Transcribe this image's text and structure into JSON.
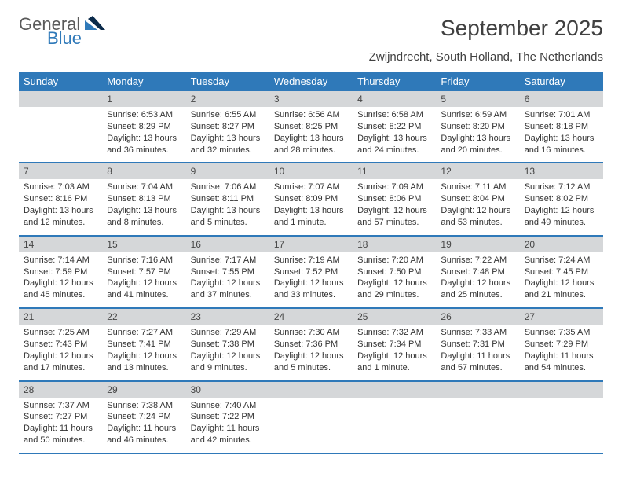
{
  "brand": {
    "word1": "General",
    "word2": "Blue"
  },
  "header": {
    "title": "September 2025",
    "subtitle": "Zwijndrecht, South Holland, The Netherlands"
  },
  "colors": {
    "accent": "#2f79b9",
    "daynum_bg": "#d5d7d9",
    "text": "#333333",
    "header_text": "#ffffff"
  },
  "weekday_labels": [
    "Sunday",
    "Monday",
    "Tuesday",
    "Wednesday",
    "Thursday",
    "Friday",
    "Saturday"
  ],
  "weeks": [
    {
      "nums": [
        "",
        "1",
        "2",
        "3",
        "4",
        "5",
        "6"
      ],
      "cells": [
        {},
        {
          "sunrise": "Sunrise: 6:53 AM",
          "sunset": "Sunset: 8:29 PM",
          "day1": "Daylight: 13 hours",
          "day2": "and 36 minutes."
        },
        {
          "sunrise": "Sunrise: 6:55 AM",
          "sunset": "Sunset: 8:27 PM",
          "day1": "Daylight: 13 hours",
          "day2": "and 32 minutes."
        },
        {
          "sunrise": "Sunrise: 6:56 AM",
          "sunset": "Sunset: 8:25 PM",
          "day1": "Daylight: 13 hours",
          "day2": "and 28 minutes."
        },
        {
          "sunrise": "Sunrise: 6:58 AM",
          "sunset": "Sunset: 8:22 PM",
          "day1": "Daylight: 13 hours",
          "day2": "and 24 minutes."
        },
        {
          "sunrise": "Sunrise: 6:59 AM",
          "sunset": "Sunset: 8:20 PM",
          "day1": "Daylight: 13 hours",
          "day2": "and 20 minutes."
        },
        {
          "sunrise": "Sunrise: 7:01 AM",
          "sunset": "Sunset: 8:18 PM",
          "day1": "Daylight: 13 hours",
          "day2": "and 16 minutes."
        }
      ]
    },
    {
      "nums": [
        "7",
        "8",
        "9",
        "10",
        "11",
        "12",
        "13"
      ],
      "cells": [
        {
          "sunrise": "Sunrise: 7:03 AM",
          "sunset": "Sunset: 8:16 PM",
          "day1": "Daylight: 13 hours",
          "day2": "and 12 minutes."
        },
        {
          "sunrise": "Sunrise: 7:04 AM",
          "sunset": "Sunset: 8:13 PM",
          "day1": "Daylight: 13 hours",
          "day2": "and 8 minutes."
        },
        {
          "sunrise": "Sunrise: 7:06 AM",
          "sunset": "Sunset: 8:11 PM",
          "day1": "Daylight: 13 hours",
          "day2": "and 5 minutes."
        },
        {
          "sunrise": "Sunrise: 7:07 AM",
          "sunset": "Sunset: 8:09 PM",
          "day1": "Daylight: 13 hours",
          "day2": "and 1 minute."
        },
        {
          "sunrise": "Sunrise: 7:09 AM",
          "sunset": "Sunset: 8:06 PM",
          "day1": "Daylight: 12 hours",
          "day2": "and 57 minutes."
        },
        {
          "sunrise": "Sunrise: 7:11 AM",
          "sunset": "Sunset: 8:04 PM",
          "day1": "Daylight: 12 hours",
          "day2": "and 53 minutes."
        },
        {
          "sunrise": "Sunrise: 7:12 AM",
          "sunset": "Sunset: 8:02 PM",
          "day1": "Daylight: 12 hours",
          "day2": "and 49 minutes."
        }
      ]
    },
    {
      "nums": [
        "14",
        "15",
        "16",
        "17",
        "18",
        "19",
        "20"
      ],
      "cells": [
        {
          "sunrise": "Sunrise: 7:14 AM",
          "sunset": "Sunset: 7:59 PM",
          "day1": "Daylight: 12 hours",
          "day2": "and 45 minutes."
        },
        {
          "sunrise": "Sunrise: 7:16 AM",
          "sunset": "Sunset: 7:57 PM",
          "day1": "Daylight: 12 hours",
          "day2": "and 41 minutes."
        },
        {
          "sunrise": "Sunrise: 7:17 AM",
          "sunset": "Sunset: 7:55 PM",
          "day1": "Daylight: 12 hours",
          "day2": "and 37 minutes."
        },
        {
          "sunrise": "Sunrise: 7:19 AM",
          "sunset": "Sunset: 7:52 PM",
          "day1": "Daylight: 12 hours",
          "day2": "and 33 minutes."
        },
        {
          "sunrise": "Sunrise: 7:20 AM",
          "sunset": "Sunset: 7:50 PM",
          "day1": "Daylight: 12 hours",
          "day2": "and 29 minutes."
        },
        {
          "sunrise": "Sunrise: 7:22 AM",
          "sunset": "Sunset: 7:48 PM",
          "day1": "Daylight: 12 hours",
          "day2": "and 25 minutes."
        },
        {
          "sunrise": "Sunrise: 7:24 AM",
          "sunset": "Sunset: 7:45 PM",
          "day1": "Daylight: 12 hours",
          "day2": "and 21 minutes."
        }
      ]
    },
    {
      "nums": [
        "21",
        "22",
        "23",
        "24",
        "25",
        "26",
        "27"
      ],
      "cells": [
        {
          "sunrise": "Sunrise: 7:25 AM",
          "sunset": "Sunset: 7:43 PM",
          "day1": "Daylight: 12 hours",
          "day2": "and 17 minutes."
        },
        {
          "sunrise": "Sunrise: 7:27 AM",
          "sunset": "Sunset: 7:41 PM",
          "day1": "Daylight: 12 hours",
          "day2": "and 13 minutes."
        },
        {
          "sunrise": "Sunrise: 7:29 AM",
          "sunset": "Sunset: 7:38 PM",
          "day1": "Daylight: 12 hours",
          "day2": "and 9 minutes."
        },
        {
          "sunrise": "Sunrise: 7:30 AM",
          "sunset": "Sunset: 7:36 PM",
          "day1": "Daylight: 12 hours",
          "day2": "and 5 minutes."
        },
        {
          "sunrise": "Sunrise: 7:32 AM",
          "sunset": "Sunset: 7:34 PM",
          "day1": "Daylight: 12 hours",
          "day2": "and 1 minute."
        },
        {
          "sunrise": "Sunrise: 7:33 AM",
          "sunset": "Sunset: 7:31 PM",
          "day1": "Daylight: 11 hours",
          "day2": "and 57 minutes."
        },
        {
          "sunrise": "Sunrise: 7:35 AM",
          "sunset": "Sunset: 7:29 PM",
          "day1": "Daylight: 11 hours",
          "day2": "and 54 minutes."
        }
      ]
    },
    {
      "nums": [
        "28",
        "29",
        "30",
        "",
        "",
        "",
        ""
      ],
      "cells": [
        {
          "sunrise": "Sunrise: 7:37 AM",
          "sunset": "Sunset: 7:27 PM",
          "day1": "Daylight: 11 hours",
          "day2": "and 50 minutes."
        },
        {
          "sunrise": "Sunrise: 7:38 AM",
          "sunset": "Sunset: 7:24 PM",
          "day1": "Daylight: 11 hours",
          "day2": "and 46 minutes."
        },
        {
          "sunrise": "Sunrise: 7:40 AM",
          "sunset": "Sunset: 7:22 PM",
          "day1": "Daylight: 11 hours",
          "day2": "and 42 minutes."
        },
        {},
        {},
        {},
        {}
      ]
    }
  ]
}
